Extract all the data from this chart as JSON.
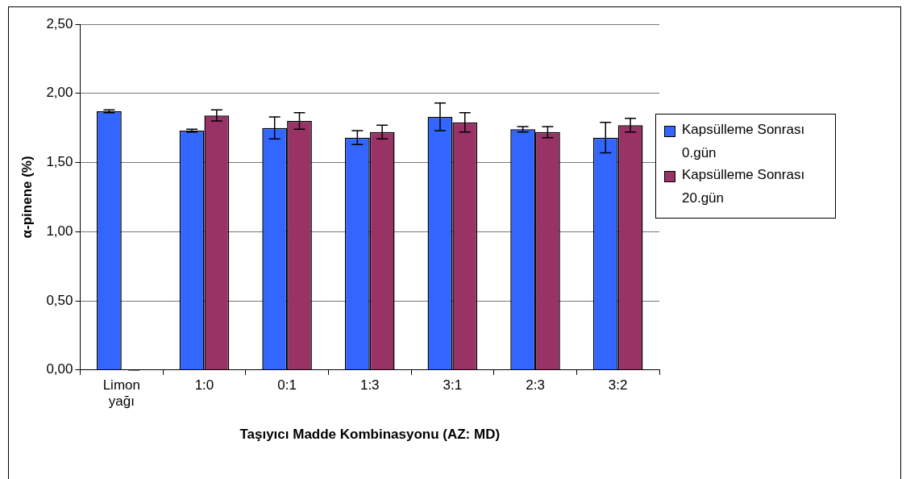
{
  "chart_data": {
    "type": "bar",
    "xlabel": "Taşıyıcı Madde Kombinasyonu (AZ: MD)",
    "ylabel": "α-pinene (%)",
    "categories": [
      "Limon yağı",
      "1:0",
      "0:1",
      "1:3",
      "3:1",
      "2:3",
      "3:2"
    ],
    "series": [
      {
        "name": "Kapsülleme Sonrası 0.gün",
        "color": "#3366ff",
        "values": [
          1.87,
          1.73,
          1.75,
          1.68,
          1.83,
          1.74,
          1.68
        ],
        "errors": [
          0.01,
          0.01,
          0.08,
          0.05,
          0.1,
          0.02,
          0.11
        ]
      },
      {
        "name": "Kapsülleme Sonrası 20.gün",
        "color": "#993366",
        "values": [
          0,
          1.84,
          1.8,
          1.72,
          1.79,
          1.72,
          1.77
        ],
        "errors": [
          0,
          0.04,
          0.06,
          0.05,
          0.07,
          0.04,
          0.05
        ]
      }
    ],
    "ylim": [
      0,
      2.5
    ],
    "yticks": [
      {
        "value": 0,
        "label": "0,00"
      },
      {
        "value": 0.5,
        "label": "0,50"
      },
      {
        "value": 1,
        "label": "1,00"
      },
      {
        "value": 1.5,
        "label": "1,50"
      },
      {
        "value": 2,
        "label": "2,00"
      },
      {
        "value": 2.5,
        "label": "2,50"
      }
    ],
    "grid": "y",
    "legend": "right"
  }
}
